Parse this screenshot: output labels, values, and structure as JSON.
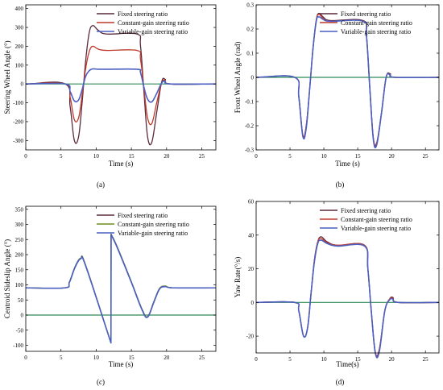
{
  "colors": {
    "fixed": "#5a2a3c",
    "constant": "#c0392b",
    "constant_alt": "#6b8e23",
    "variable": "#4a5fc1",
    "zero_line": "#2e8b57"
  },
  "chart_data": [
    {
      "type": "line",
      "panel_label": "(a)",
      "xlabel": "Time (s)",
      "ylabel": "Steering Wheel Angle (°)",
      "xlim": [
        0,
        27
      ],
      "ylim": [
        -350,
        420
      ],
      "x_ticks": [
        0,
        5,
        10,
        15,
        20,
        25
      ],
      "y_ticks": [
        -300,
        -200,
        -100,
        0,
        100,
        200,
        300,
        400
      ],
      "x_tick_labels": [
        "0",
        "5",
        "10",
        "15",
        "20",
        "25"
      ],
      "y_tick_labels": [
        "-300",
        "-200",
        "-100",
        "0",
        "100",
        "200",
        "300",
        "400"
      ],
      "legend_position": "top-right",
      "series": [
        {
          "name": "Fixed steering ratio",
          "color_key": "fixed",
          "x": [
            0,
            5.6,
            6.3,
            6.9,
            7.5,
            8.0,
            8.5,
            9.0,
            9.5,
            10.3,
            11.5,
            15.8,
            16.3,
            16.8,
            17.3,
            17.9,
            18.6,
            19.3,
            19.8,
            20.5,
            27
          ],
          "y": [
            0,
            0,
            -120,
            -300,
            -280,
            -100,
            120,
            270,
            310,
            285,
            265,
            265,
            200,
            -50,
            -280,
            -310,
            -150,
            10,
            25,
            0,
            0
          ]
        },
        {
          "name": "Constant-gain steering ratio",
          "color_key": "constant",
          "x": [
            0,
            5.6,
            6.3,
            6.9,
            7.5,
            8.0,
            8.5,
            9.0,
            9.5,
            10.3,
            11.5,
            15.8,
            16.3,
            16.8,
            17.3,
            17.9,
            18.6,
            19.3,
            19.8,
            20.5,
            27
          ],
          "y": [
            0,
            0,
            -70,
            -190,
            -180,
            -60,
            80,
            170,
            200,
            185,
            178,
            178,
            130,
            -30,
            -180,
            -210,
            -100,
            5,
            20,
            0,
            0
          ]
        },
        {
          "name": "Variable-gain steering ratio",
          "color_key": "variable",
          "x": [
            0,
            5.6,
            6.3,
            6.9,
            7.5,
            8.0,
            8.5,
            9.0,
            9.5,
            10.3,
            11.5,
            15.8,
            16.3,
            16.8,
            17.3,
            17.9,
            18.6,
            19.3,
            19.8,
            20.5,
            27
          ],
          "y": [
            0,
            0,
            -40,
            -90,
            -85,
            -30,
            40,
            70,
            80,
            78,
            78,
            78,
            60,
            -20,
            -80,
            -95,
            -50,
            5,
            15,
            0,
            0
          ]
        }
      ]
    },
    {
      "type": "line",
      "panel_label": "(b)",
      "xlabel": "Time (s)",
      "ylabel": "Front Wheel Angle (rad)",
      "xlim": [
        0,
        27
      ],
      "ylim": [
        -0.3,
        0.3
      ],
      "x_ticks": [
        0,
        5,
        10,
        15,
        20,
        25
      ],
      "y_ticks": [
        -0.3,
        -0.2,
        -0.1,
        0,
        0.1,
        0.2,
        0.3
      ],
      "x_tick_labels": [
        "0",
        "5",
        "10",
        "15",
        "20",
        "25"
      ],
      "y_tick_labels": [
        "-0.3",
        "-0.2",
        "-0.1",
        "0",
        "0.1",
        "0.2",
        "0.3"
      ],
      "legend_position": "top-right",
      "series": [
        {
          "name": "Fixed steering ratio",
          "color_key": "fixed",
          "x": [
            0,
            5.7,
            6.3,
            6.9,
            7.4,
            7.9,
            8.4,
            8.9,
            9.3,
            9.9,
            11.0,
            15.8,
            16.3,
            16.8,
            17.3,
            17.8,
            18.5,
            19.2,
            19.8,
            20.5,
            27
          ],
          "y": [
            0,
            0,
            -0.08,
            -0.24,
            -0.2,
            -0.05,
            0.12,
            0.24,
            0.265,
            0.25,
            0.235,
            0.235,
            0.17,
            -0.05,
            -0.25,
            -0.275,
            -0.15,
            0.0,
            0.015,
            0,
            0
          ]
        },
        {
          "name": "Constant-gain steering ratio",
          "color_key": "constant",
          "x": [
            0,
            5.7,
            6.3,
            6.9,
            7.4,
            7.9,
            8.4,
            8.9,
            9.3,
            9.9,
            11.0,
            15.8,
            16.3,
            16.8,
            17.3,
            17.8,
            18.5,
            19.2,
            19.8,
            20.5,
            27
          ],
          "y": [
            0,
            0,
            -0.08,
            -0.24,
            -0.2,
            -0.05,
            0.12,
            0.24,
            0.26,
            0.245,
            0.233,
            0.233,
            0.17,
            -0.05,
            -0.25,
            -0.27,
            -0.15,
            0.0,
            0.012,
            0,
            0
          ]
        },
        {
          "name": "Variable-gain steering ratio",
          "color_key": "variable",
          "x": [
            0,
            5.7,
            6.3,
            6.9,
            7.4,
            7.9,
            8.4,
            8.9,
            9.3,
            9.9,
            11.0,
            15.8,
            16.3,
            16.8,
            17.3,
            17.8,
            18.5,
            19.2,
            19.8,
            20.5,
            27
          ],
          "y": [
            0,
            0,
            -0.08,
            -0.245,
            -0.21,
            -0.05,
            0.12,
            0.235,
            0.25,
            0.24,
            0.232,
            0.232,
            0.17,
            -0.05,
            -0.255,
            -0.28,
            -0.15,
            0.0,
            0.01,
            0,
            0
          ]
        }
      ]
    },
    {
      "type": "line",
      "panel_label": "(c)",
      "xlabel": "Time (s)",
      "ylabel": "Centroid Sideslip Angle (°)",
      "xlim": [
        0,
        27
      ],
      "ylim": [
        -120,
        360
      ],
      "x_ticks": [
        0,
        5,
        10,
        15,
        20,
        25
      ],
      "y_ticks": [
        -100,
        -50,
        0,
        50,
        100,
        150,
        200,
        250,
        300,
        350
      ],
      "x_tick_labels": [
        "0",
        "5",
        "10",
        "15",
        "20",
        "25"
      ],
      "y_tick_labels": [
        "-100",
        "-50",
        "0",
        "50",
        "100",
        "150",
        "200",
        "250",
        "300",
        "350"
      ],
      "legend_position": "top-right",
      "series": [
        {
          "name": "Fixed steering ratio",
          "color_key": "fixed",
          "x": [
            0,
            5.5,
            6.2,
            7.0,
            7.8,
            8.5,
            12.1,
            12.12,
            13.0,
            15.0,
            16.5,
            17.3,
            18.2,
            19.0,
            19.8,
            21.0,
            27
          ],
          "y": [
            90,
            90,
            110,
            160,
            188,
            165,
            -92,
            268,
            225,
            110,
            20,
            -5,
            45,
            88,
            96,
            90,
            90
          ]
        },
        {
          "name": "Constant-gain steering ratio",
          "color_key": "constant_alt",
          "x": [
            0,
            5.5,
            6.2,
            7.0,
            7.8,
            8.5,
            12.1,
            12.12,
            13.0,
            15.0,
            16.5,
            17.3,
            18.2,
            19.0,
            19.8,
            21.0,
            27
          ],
          "y": [
            90,
            90,
            110,
            160,
            188,
            165,
            -92,
            268,
            225,
            110,
            20,
            -5,
            45,
            88,
            96,
            90,
            90
          ]
        },
        {
          "name": "Variable-gain steering ratio",
          "color_key": "variable",
          "x": [
            0,
            5.5,
            6.2,
            7.0,
            7.8,
            8.5,
            12.1,
            12.12,
            13.0,
            15.0,
            16.5,
            17.3,
            18.2,
            19.0,
            19.8,
            21.0,
            27
          ],
          "y": [
            90,
            90,
            108,
            158,
            186,
            163,
            -92,
            266,
            223,
            108,
            18,
            -7,
            43,
            86,
            94,
            90,
            90
          ]
        }
      ]
    },
    {
      "type": "line",
      "panel_label": "(d)",
      "xlabel": "Time(s)",
      "ylabel": "Yaw Rate(°/s)",
      "xlim": [
        0,
        27
      ],
      "ylim": [
        -30,
        60
      ],
      "x_ticks": [
        0,
        5,
        10,
        15,
        20,
        25
      ],
      "y_ticks": [
        -20,
        0,
        20,
        40,
        60
      ],
      "x_tick_labels": [
        "0",
        "5",
        "10",
        "15",
        "20",
        "25"
      ],
      "y_tick_labels": [
        "-20",
        "0",
        "20",
        "40",
        "60"
      ],
      "legend_position": "top-right",
      "series": [
        {
          "name": "Fixed steering ratio",
          "color_key": "fixed",
          "x": [
            0,
            5.7,
            6.3,
            7.0,
            7.6,
            8.1,
            8.6,
            9.1,
            9.6,
            10.5,
            12.0,
            16.0,
            16.5,
            17.0,
            17.6,
            18.2,
            19.0,
            19.7,
            20.2,
            21.0,
            27
          ],
          "y": [
            0,
            0,
            -5,
            -20,
            -15,
            5,
            25,
            36,
            39,
            36,
            34,
            34,
            20,
            -5,
            -30,
            -28,
            -5,
            2,
            3,
            0,
            0
          ]
        },
        {
          "name": "Constant-gain steering ratio",
          "color_key": "constant",
          "x": [
            0,
            5.7,
            6.3,
            7.0,
            7.6,
            8.1,
            8.6,
            9.1,
            9.6,
            10.5,
            12.0,
            16.0,
            16.5,
            17.0,
            17.6,
            18.2,
            19.0,
            19.7,
            20.2,
            21.0,
            27
          ],
          "y": [
            0,
            0,
            -5,
            -20,
            -15,
            5,
            25,
            36,
            38,
            35.5,
            34,
            34,
            20,
            -5,
            -29.5,
            -27.5,
            -5,
            2,
            2.5,
            0,
            0
          ]
        },
        {
          "name": "Variable-gain steering ratio",
          "color_key": "variable",
          "x": [
            0,
            5.7,
            6.3,
            7.0,
            7.6,
            8.1,
            8.6,
            9.1,
            9.6,
            10.5,
            12.0,
            16.0,
            16.5,
            17.0,
            17.6,
            18.2,
            19.0,
            19.7,
            20.2,
            21.0,
            27
          ],
          "y": [
            0,
            0,
            -5,
            -20,
            -15,
            5,
            24,
            35,
            37,
            35,
            33.5,
            33.5,
            20,
            -5,
            -30,
            -29,
            -5,
            1.5,
            2,
            0,
            0
          ]
        }
      ]
    }
  ]
}
